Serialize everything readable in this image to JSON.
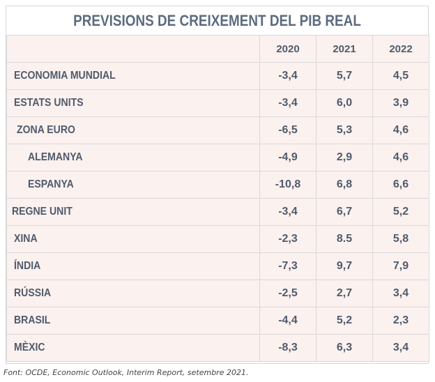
{
  "title": "PREVISIONS DE CREIXEMENT DEL PIB REAL",
  "columns": [
    "2020",
    "2021",
    "2022"
  ],
  "rows": [
    {
      "name": "ECONOMIA MUNDIAL",
      "v2020": "-3,4",
      "v2021": "5,7",
      "v2022": "4,5"
    },
    {
      "name": "ESTATS UNITS",
      "v2020": "-3,4",
      "v2021": "6,0",
      "v2022": "3,9"
    },
    {
      "name": "ZONA EURO",
      "v2020": "-6,5",
      "v2021": "5,3",
      "v2022": "4,6"
    },
    {
      "name": "ALEMANYA",
      "v2020": "-4,9",
      "v2021": "2,9",
      "v2022": "4,6"
    },
    {
      "name": "ESPANYA",
      "v2020": "-10,8",
      "v2021": "6,8",
      "v2022": "6,6"
    },
    {
      "name": "REGNE UNIT",
      "v2020": "-3,4",
      "v2021": "6,7",
      "v2022": "5,2"
    },
    {
      "name": "XINA",
      "v2020": "-2,3",
      "v2021": "8.5",
      "v2022": "5,8"
    },
    {
      "name": "ÍNDIA",
      "v2020": "-7,3",
      "v2021": "9,7",
      "v2022": "7,9"
    },
    {
      "name": "RÚSSIA",
      "v2020": "-2,5",
      "v2021": "2,7",
      "v2022": "3,4"
    },
    {
      "name": "BRASIL",
      "v2020": "-4,4",
      "v2021": "5,2",
      "v2022": "2,3"
    },
    {
      "name": "MÈXIC",
      "v2020": "-8,3",
      "v2021": "6,3",
      "v2022": "3,4"
    }
  ],
  "source": "Font: OCDE, Economic Outlook, Interim Report, setembre 2021."
}
